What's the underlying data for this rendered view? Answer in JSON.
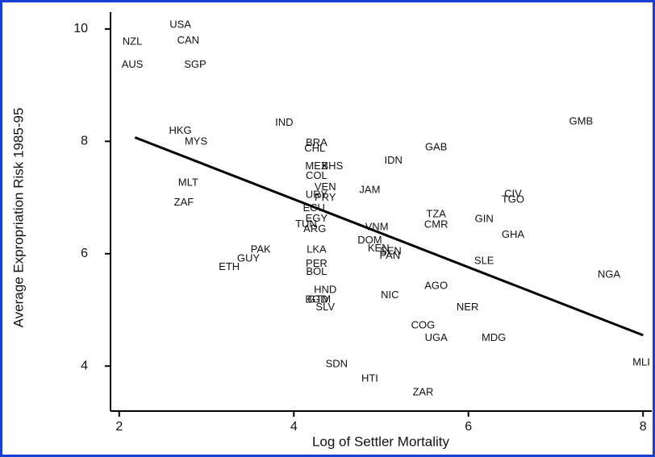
{
  "chart_data": {
    "type": "scatter",
    "xlabel": "Log of Settler Mortality",
    "ylabel": "Average Expropriation Risk 1985-95",
    "xlim": [
      1.9,
      8.1
    ],
    "ylim": [
      3.2,
      10.3
    ],
    "xticks": [
      2,
      4,
      6,
      8
    ],
    "yticks": [
      4,
      6,
      8,
      10
    ],
    "labels": [
      "USA",
      "NZL",
      "CAN",
      "AUS",
      "SGP",
      "IND",
      "HKG",
      "MYS",
      "BRA",
      "CHL",
      "GMB",
      "GAB",
      "IDN",
      "MEX",
      "BHS",
      "COL",
      "MLT",
      "JAM",
      "VEN",
      "URY",
      "PRY",
      "ZAF",
      "CIV",
      "TGO",
      "ECU",
      "TZA",
      "CMR",
      "GIN",
      "EGY",
      "TUN",
      "ARG",
      "VNM",
      "GHA",
      "DOM",
      "KEN",
      "SEN",
      "PAN",
      "PAK",
      "GUY",
      "ETH",
      "LKA",
      "SLE",
      "PER",
      "BOL",
      "NGA",
      "AGO",
      "HND",
      "NIC",
      "BGD",
      "GTM",
      "SLV",
      "NER",
      "COG",
      "UGA",
      "MDG",
      "MLI",
      "SDN",
      "HTI",
      "ZAR"
    ],
    "x": [
      2.7,
      2.15,
      2.79,
      2.15,
      2.87,
      3.89,
      2.7,
      2.88,
      4.26,
      4.24,
      7.29,
      5.63,
      5.14,
      4.26,
      4.44,
      4.26,
      2.79,
      4.87,
      4.36,
      4.26,
      4.36,
      2.74,
      6.51,
      6.51,
      4.23,
      5.63,
      5.63,
      6.18,
      4.26,
      4.14,
      4.24,
      4.95,
      6.51,
      4.87,
      4.97,
      5.11,
      5.1,
      3.62,
      3.48,
      3.26,
      4.26,
      6.18,
      4.26,
      4.26,
      7.61,
      5.63,
      4.36,
      5.1,
      4.26,
      4.29,
      4.36,
      5.99,
      5.48,
      5.63,
      6.29,
      7.98,
      4.49,
      4.87,
      5.48
    ],
    "y": [
      10.07,
      9.77,
      9.79,
      9.36,
      9.36,
      8.33,
      8.18,
      7.99,
      7.97,
      7.87,
      8.35,
      7.89,
      7.65,
      7.55,
      7.55,
      7.38,
      7.26,
      7.13,
      7.18,
      7.04,
      6.99,
      6.91,
      7.06,
      6.96,
      6.81,
      6.7,
      6.51,
      6.61,
      6.62,
      6.52,
      6.43,
      6.47,
      6.33,
      6.23,
      6.09,
      6.04,
      5.96,
      6.07,
      5.91,
      5.76,
      6.07,
      5.87,
      5.82,
      5.67,
      5.62,
      5.42,
      5.35,
      5.26,
      5.18,
      5.18,
      5.04,
      5.04,
      4.72,
      4.5,
      4.5,
      4.06,
      4.03,
      3.77,
      3.53
    ],
    "fit": {
      "x": [
        2.18,
        8
      ],
      "y": [
        8.07,
        4.55
      ]
    }
  }
}
